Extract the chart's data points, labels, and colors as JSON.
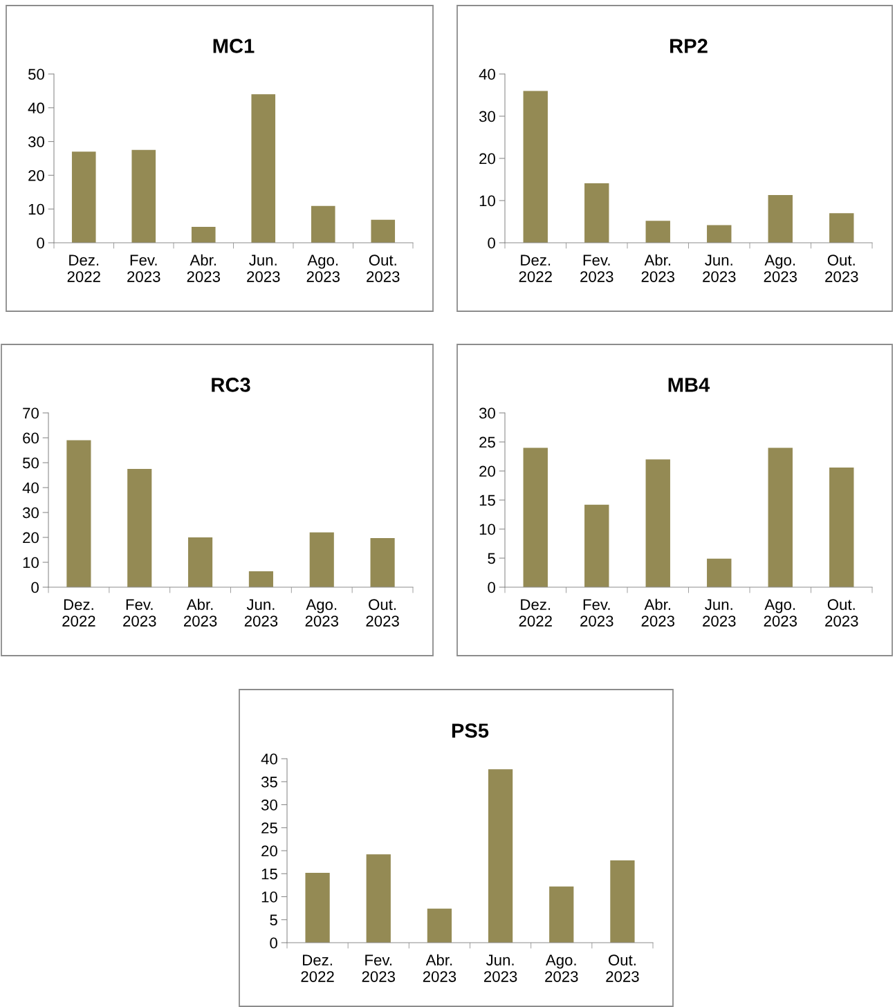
{
  "chart_data": [
    {
      "type": "bar",
      "title": "MC1",
      "categories": [
        "Dez.\n2022",
        "Fev.\n2023",
        "Abr.\n2023",
        "Jun.\n2023",
        "Ago.\n2023",
        "Out.\n2023"
      ],
      "values": [
        27.0,
        27.5,
        4.7,
        44.0,
        10.9,
        6.8
      ],
      "color": "#948a54",
      "ylim": [
        0,
        50
      ],
      "yticks": [
        0,
        10,
        20,
        30,
        40,
        50
      ],
      "grid": false,
      "legend": false
    },
    {
      "type": "bar",
      "title": "RP2",
      "categories": [
        "Dez.\n2022",
        "Fev.\n2023",
        "Abr.\n2023",
        "Jun.\n2023",
        "Ago.\n2023",
        "Out.\n2023"
      ],
      "values": [
        36.0,
        14.1,
        5.2,
        4.2,
        11.3,
        7.0
      ],
      "color": "#948a54",
      "ylim": [
        0,
        40
      ],
      "yticks": [
        0,
        10,
        20,
        30,
        40
      ],
      "grid": false,
      "legend": false
    },
    {
      "type": "bar",
      "title": "RC3",
      "categories": [
        "Dez.\n2022",
        "Fev.\n2023",
        "Abr.\n2023",
        "Jun.\n2023",
        "Ago.\n2023",
        "Out.\n2023"
      ],
      "values": [
        59.0,
        47.5,
        20.0,
        6.4,
        22.0,
        19.7
      ],
      "color": "#948a54",
      "ylim": [
        0,
        70
      ],
      "yticks": [
        0,
        10,
        20,
        30,
        40,
        50,
        60,
        70
      ],
      "grid": false,
      "legend": false
    },
    {
      "type": "bar",
      "title": "MB4",
      "categories": [
        "Dez.\n2022",
        "Fev.\n2023",
        "Abr.\n2023",
        "Jun.\n2023",
        "Ago.\n2023",
        "Out.\n2023"
      ],
      "values": [
        24.0,
        14.2,
        22.0,
        4.9,
        24.0,
        20.6
      ],
      "color": "#948a54",
      "ylim": [
        0,
        30
      ],
      "yticks": [
        0,
        5,
        10,
        15,
        20,
        25,
        30
      ],
      "grid": false,
      "legend": false
    },
    {
      "type": "bar",
      "title": "PS5",
      "categories": [
        "Dez.\n2022",
        "Fev.\n2023",
        "Abr.\n2023",
        "Jun.\n2023",
        "Ago.\n2023",
        "Out.\n2023"
      ],
      "values": [
        15.2,
        19.2,
        7.4,
        37.7,
        12.2,
        17.9
      ],
      "color": "#948a54",
      "ylim": [
        0,
        40
      ],
      "yticks": [
        0,
        5,
        10,
        15,
        20,
        25,
        30,
        35,
        40
      ],
      "grid": false,
      "legend": false
    }
  ]
}
